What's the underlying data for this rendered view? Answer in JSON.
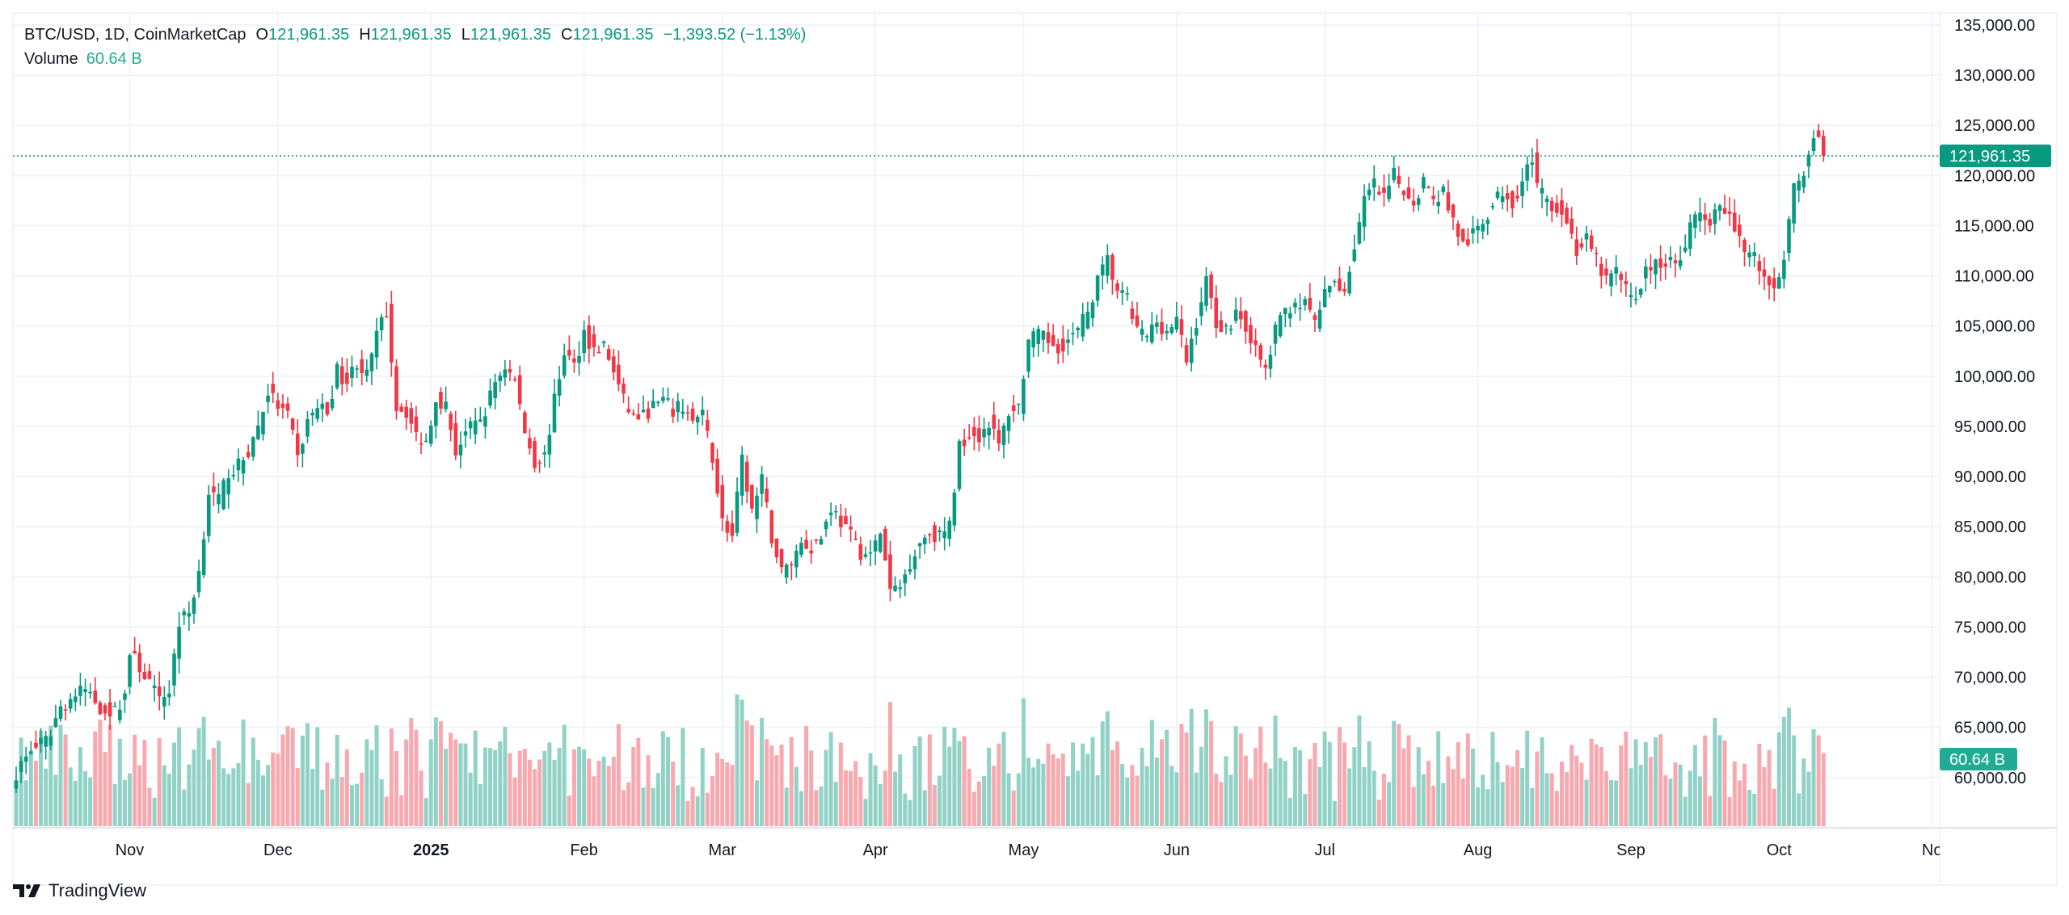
{
  "legend": {
    "symbol": "BTC/USD, 1D, CoinMarketCap",
    "o_label": "O",
    "o_value": "121,961.35",
    "h_label": "H",
    "h_value": "121,961.35",
    "l_label": "L",
    "l_value": "121,961.35",
    "c_label": "C",
    "c_value": "121,961.35",
    "change": "−1,393.52 (−1.13%)",
    "volume_label": "Volume",
    "volume_value": "60.64 B"
  },
  "brand": {
    "name": "TradingView"
  },
  "colors": {
    "up": "#089981",
    "down": "#f23645",
    "vol_up": "#92d2c6",
    "vol_down": "#f7a9af",
    "grid": "#f0f3fa",
    "tag": "#089981",
    "vol_tag": "#22ab94"
  },
  "chart_data": {
    "type": "candlestick",
    "title": "BTC/USD, 1D, CoinMarketCap",
    "ylim": [
      52500,
      138000
    ],
    "y_ticks": [
      "135,000.00",
      "130,000.00",
      "125,000.00",
      "120,000.00",
      "115,000.00",
      "110,000.00",
      "105,000.00",
      "100,000.00",
      "95,000.00",
      "90,000.00",
      "85,000.00",
      "80,000.00",
      "75,000.00",
      "70,000.00",
      "65,000.00",
      "60,000.00"
    ],
    "y_tick_values": [
      135000,
      130000,
      125000,
      120000,
      115000,
      110000,
      105000,
      100000,
      95000,
      90000,
      85000,
      80000,
      75000,
      70000,
      65000,
      60000
    ],
    "x_labels": [
      {
        "label": "Nov",
        "day": 23,
        "bold": false
      },
      {
        "label": "Dec",
        "day": 53,
        "bold": false
      },
      {
        "label": "2025",
        "day": 84,
        "bold": true
      },
      {
        "label": "Feb",
        "day": 115,
        "bold": false
      },
      {
        "label": "Mar",
        "day": 143,
        "bold": false
      },
      {
        "label": "Apr",
        "day": 174,
        "bold": false
      },
      {
        "label": "May",
        "day": 204,
        "bold": false
      },
      {
        "label": "Jun",
        "day": 235,
        "bold": false
      },
      {
        "label": "Jul",
        "day": 265,
        "bold": false
      },
      {
        "label": "Aug",
        "day": 296,
        "bold": false
      },
      {
        "label": "Sep",
        "day": 327,
        "bold": false
      },
      {
        "label": "Oct",
        "day": 357,
        "bold": false
      },
      {
        "label": "No",
        "day": 388,
        "bold": false
      }
    ],
    "last_price": 121961.35,
    "last_price_label": "121,961.35",
    "last_volume_label": "60.64 B",
    "close_anchors_k": [
      [
        0,
        60.5
      ],
      [
        3,
        62.8
      ],
      [
        6,
        63.5
      ],
      [
        9,
        67.0
      ],
      [
        12,
        68.2
      ],
      [
        14,
        68.8
      ],
      [
        17,
        67.0
      ],
      [
        20,
        66.5
      ],
      [
        22,
        68.4
      ],
      [
        23,
        72.4
      ],
      [
        25,
        71.0
      ],
      [
        27,
        69.5
      ],
      [
        29,
        67.5
      ],
      [
        31,
        68.8
      ],
      [
        33,
        75.5
      ],
      [
        35,
        76.4
      ],
      [
        37,
        80.5
      ],
      [
        39,
        88.5
      ],
      [
        41,
        87.5
      ],
      [
        43,
        90.5
      ],
      [
        45,
        91.0
      ],
      [
        47,
        92.5
      ],
      [
        49,
        95.0
      ],
      [
        51,
        98.5
      ],
      [
        53,
        97.0
      ],
      [
        55,
        96.0
      ],
      [
        57,
        91.8
      ],
      [
        59,
        95.5
      ],
      [
        61,
        97.0
      ],
      [
        63,
        96.5
      ],
      [
        65,
        100.5
      ],
      [
        67,
        99.5
      ],
      [
        69,
        101.5
      ],
      [
        71,
        100.0
      ],
      [
        73,
        104.0
      ],
      [
        75,
        106.5
      ],
      [
        77,
        97.0
      ],
      [
        79,
        96.5
      ],
      [
        81,
        94.0
      ],
      [
        83,
        93.5
      ],
      [
        85,
        98.0
      ],
      [
        87,
        97.0
      ],
      [
        89,
        92.5
      ],
      [
        91,
        94.5
      ],
      [
        93,
        95.0
      ],
      [
        95,
        96.5
      ],
      [
        97,
        99.5
      ],
      [
        99,
        101.0
      ],
      [
        101,
        99.5
      ],
      [
        103,
        94.5
      ],
      [
        105,
        91.5
      ],
      [
        107,
        92.0
      ],
      [
        109,
        97.5
      ],
      [
        111,
        102.5
      ],
      [
        113,
        101.0
      ],
      [
        115,
        104.5
      ],
      [
        117,
        102.5
      ],
      [
        119,
        103.0
      ],
      [
        121,
        100.5
      ],
      [
        123,
        97.5
      ],
      [
        125,
        96.0
      ],
      [
        127,
        96.0
      ],
      [
        129,
        97.0
      ],
      [
        131,
        97.5
      ],
      [
        133,
        96.5
      ],
      [
        135,
        97.0
      ],
      [
        137,
        95.5
      ],
      [
        139,
        96.0
      ],
      [
        141,
        92.0
      ],
      [
        143,
        85.5
      ],
      [
        145,
        84.0
      ],
      [
        147,
        91.5
      ],
      [
        149,
        86.5
      ],
      [
        151,
        89.5
      ],
      [
        153,
        84.0
      ],
      [
        155,
        80.5
      ],
      [
        157,
        81.5
      ],
      [
        159,
        83.5
      ],
      [
        161,
        83.0
      ],
      [
        163,
        84.0
      ],
      [
        165,
        87.0
      ],
      [
        167,
        85.5
      ],
      [
        169,
        84.0
      ],
      [
        171,
        82.5
      ],
      [
        173,
        82.0
      ],
      [
        175,
        84.5
      ],
      [
        177,
        78.5
      ],
      [
        179,
        79.0
      ],
      [
        181,
        81.5
      ],
      [
        183,
        83.5
      ],
      [
        185,
        84.5
      ],
      [
        187,
        84.0
      ],
      [
        189,
        85.0
      ],
      [
        191,
        93.0
      ],
      [
        193,
        94.5
      ],
      [
        195,
        94.0
      ],
      [
        197,
        95.5
      ],
      [
        199,
        93.0
      ],
      [
        201,
        96.5
      ],
      [
        203,
        97.0
      ],
      [
        205,
        103.5
      ],
      [
        207,
        104.0
      ],
      [
        209,
        103.5
      ],
      [
        211,
        103.0
      ],
      [
        213,
        103.5
      ],
      [
        215,
        104.5
      ],
      [
        217,
        106.5
      ],
      [
        219,
        109.5
      ],
      [
        221,
        111.5
      ],
      [
        223,
        108.5
      ],
      [
        225,
        107.5
      ],
      [
        227,
        104.5
      ],
      [
        229,
        104.0
      ],
      [
        231,
        105.5
      ],
      [
        233,
        104.5
      ],
      [
        235,
        105.5
      ],
      [
        237,
        101.5
      ],
      [
        239,
        105.5
      ],
      [
        241,
        109.5
      ],
      [
        243,
        105.5
      ],
      [
        245,
        104.5
      ],
      [
        247,
        106.5
      ],
      [
        249,
        105.0
      ],
      [
        251,
        102.5
      ],
      [
        253,
        100.5
      ],
      [
        255,
        104.5
      ],
      [
        257,
        106.5
      ],
      [
        259,
        107.5
      ],
      [
        261,
        107.0
      ],
      [
        263,
        105.5
      ],
      [
        265,
        108.0
      ],
      [
        267,
        109.5
      ],
      [
        269,
        108.5
      ],
      [
        271,
        113.0
      ],
      [
        273,
        117.5
      ],
      [
        275,
        119.0
      ],
      [
        277,
        117.5
      ],
      [
        279,
        120.0
      ],
      [
        281,
        118.5
      ],
      [
        283,
        117.5
      ],
      [
        285,
        119.5
      ],
      [
        287,
        117.5
      ],
      [
        289,
        118.5
      ],
      [
        291,
        115.5
      ],
      [
        293,
        113.0
      ],
      [
        295,
        114.0
      ],
      [
        297,
        115.5
      ],
      [
        299,
        117.0
      ],
      [
        301,
        118.5
      ],
      [
        303,
        117.5
      ],
      [
        305,
        119.5
      ],
      [
        307,
        122.0
      ],
      [
        308,
        118.5
      ],
      [
        310,
        117.5
      ],
      [
        312,
        117.0
      ],
      [
        314,
        115.5
      ],
      [
        316,
        112.5
      ],
      [
        318,
        113.5
      ],
      [
        320,
        111.5
      ],
      [
        322,
        109.5
      ],
      [
        324,
        110.5
      ],
      [
        326,
        108.5
      ],
      [
        328,
        108.0
      ],
      [
        330,
        110.5
      ],
      [
        332,
        111.0
      ],
      [
        334,
        111.5
      ],
      [
        336,
        111.0
      ],
      [
        338,
        113.5
      ],
      [
        340,
        116.0
      ],
      [
        342,
        115.5
      ],
      [
        344,
        116.0
      ],
      [
        346,
        116.5
      ],
      [
        348,
        115.0
      ],
      [
        350,
        112.5
      ],
      [
        352,
        112.0
      ],
      [
        354,
        109.5
      ],
      [
        356,
        109.0
      ],
      [
        358,
        112.0
      ],
      [
        360,
        118.5
      ],
      [
        362,
        120.5
      ],
      [
        363,
        122.5
      ],
      [
        364,
        124.0
      ],
      [
        365,
        123.5
      ],
      [
        366,
        121.96
      ]
    ],
    "volume_range_b": [
      20,
      160
    ]
  }
}
